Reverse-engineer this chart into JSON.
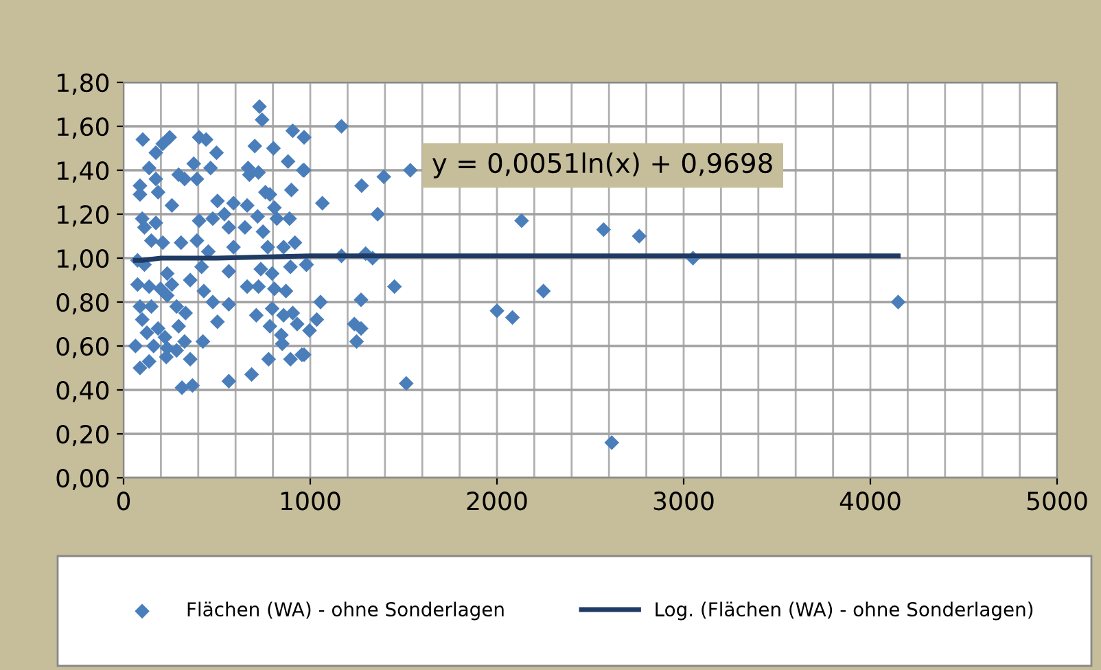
{
  "chart_data": {
    "type": "scatter",
    "xlim": [
      0,
      5000
    ],
    "xticks": [
      0,
      1000,
      2000,
      3000,
      4000,
      5000
    ],
    "ylim": [
      0,
      1.8
    ],
    "yticks": [
      {
        "value": 0,
        "label": "0,00"
      },
      {
        "value": 0.2,
        "label": "0,20"
      },
      {
        "value": 0.4,
        "label": "0,40"
      },
      {
        "value": 0.6,
        "label": "0,60"
      },
      {
        "value": 0.8,
        "label": "0,80"
      },
      {
        "value": 1.0,
        "label": "1,00"
      },
      {
        "value": 1.2,
        "label": "1,20"
      },
      {
        "value": 1.4,
        "label": "1,40"
      },
      {
        "value": 1.6,
        "label": "1,60"
      },
      {
        "value": 1.8,
        "label": "1,80"
      }
    ],
    "grid": true,
    "legend": "bottom",
    "marker": "diamond",
    "annotations": [
      "y = 0,0051ln(x) + 0,9698"
    ],
    "series": [
      {
        "name": "Flächen (WA) - ohne Sonderlagen",
        "color": "#4a7ebb",
        "x": [
          4149,
          3050,
          2762,
          2571,
          2615,
          2132,
          2249,
          2000,
          2083,
          1167,
          967,
          967,
          1275,
          1394,
          1536,
          1065,
          1361,
          1167,
          1297,
          1334,
          980,
          1451,
          1055,
          1272,
          1035,
          996,
          1236,
          1272,
          1248,
          967,
          1514,
          728,
          742,
          103,
          247,
          210,
          405,
          442,
          906,
          967,
          703,
          803,
          498,
          173,
          137,
          376,
          466,
          667,
          723,
          674,
          881,
          962,
          295,
          327,
          393,
          88,
          173,
          185,
          88,
          760,
          784,
          899,
          259,
          503,
          589,
          662,
          808,
          100,
          112,
          173,
          405,
          478,
          540,
          564,
          650,
          718,
          747,
          821,
          889,
          149,
          210,
          308,
          393,
          454,
          589,
          772,
          857,
          918,
          75,
          112,
          418,
          564,
          735,
          796,
          894,
          979,
          234,
          357,
          75,
          137,
          198,
          259,
          662,
          723,
          808,
          870,
          430,
          478,
          564,
          88,
          149,
          234,
          284,
          332,
          711,
          796,
          857,
          906,
          930,
          100,
          185,
          503,
          125,
          222,
          295,
          784,
          845,
          850,
          64,
          161,
          234,
          327,
          425,
          88,
          137,
          229,
          284,
          357,
          777,
          894,
          955,
          686,
          313,
          369,
          564
        ],
        "values": [
          0.8,
          1.0,
          1.1,
          1.13,
          0.16,
          1.17,
          0.85,
          0.76,
          0.73,
          1.6,
          1.55,
          1.4,
          1.33,
          1.37,
          1.4,
          1.25,
          1.2,
          1.01,
          1.02,
          1.0,
          0.97,
          0.87,
          0.8,
          0.81,
          0.72,
          0.67,
          0.7,
          0.68,
          0.62,
          0.56,
          0.43,
          1.69,
          1.63,
          1.54,
          1.55,
          1.52,
          1.55,
          1.54,
          1.58,
          1.55,
          1.51,
          1.5,
          1.48,
          1.48,
          1.41,
          1.43,
          1.41,
          1.41,
          1.39,
          1.38,
          1.44,
          1.4,
          1.38,
          1.36,
          1.36,
          1.33,
          1.36,
          1.3,
          1.29,
          1.3,
          1.29,
          1.31,
          1.24,
          1.26,
          1.25,
          1.24,
          1.23,
          1.18,
          1.14,
          1.16,
          1.17,
          1.18,
          1.2,
          1.14,
          1.14,
          1.19,
          1.12,
          1.18,
          1.18,
          1.08,
          1.07,
          1.07,
          1.08,
          1.03,
          1.05,
          1.05,
          1.05,
          1.07,
          0.99,
          0.97,
          0.96,
          0.94,
          0.95,
          0.93,
          0.96,
          0.97,
          0.93,
          0.9,
          0.88,
          0.87,
          0.86,
          0.88,
          0.87,
          0.87,
          0.86,
          0.85,
          0.85,
          0.8,
          0.79,
          0.78,
          0.78,
          0.83,
          0.78,
          0.75,
          0.74,
          0.77,
          0.74,
          0.75,
          0.7,
          0.72,
          0.68,
          0.71,
          0.66,
          0.64,
          0.69,
          0.69,
          0.65,
          0.61,
          0.6,
          0.6,
          0.59,
          0.62,
          0.62,
          0.5,
          0.53,
          0.55,
          0.58,
          0.54,
          0.54,
          0.54,
          0.56,
          0.47,
          0.41,
          0.42,
          0.44
        ]
      },
      {
        "name": "Log. (Flächen (WA) - ohne Sonderlagen)",
        "type": "line",
        "color": "#1f3b63",
        "line_style": "solid",
        "marker": "none",
        "x": [
          64,
          100,
          200,
          500,
          1000,
          2000,
          3000,
          4149
        ],
        "values": [
          0.99,
          0.99,
          1.0,
          1.0,
          1.01,
          1.01,
          1.01,
          1.01
        ]
      }
    ]
  }
}
